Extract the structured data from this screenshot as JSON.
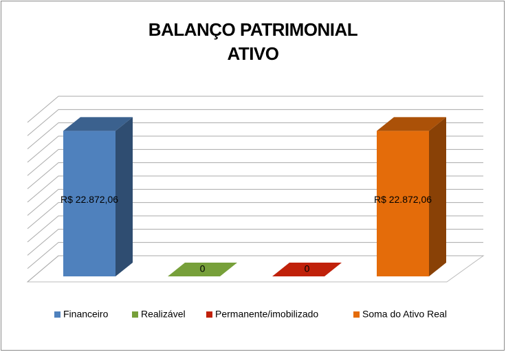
{
  "chart_data": {
    "type": "bar3d",
    "title": [
      "BALANÇO PATRIMONIAL",
      "ATIVO"
    ],
    "categories": [
      "Financeiro",
      "Realizável",
      "Permanente/imobilizado",
      "Soma do Ativo Real"
    ],
    "values": [
      22872.06,
      0,
      0,
      22872.06
    ],
    "value_labels": [
      "R$ 22.872,06",
      "0",
      "0",
      "R$ 22.872,06"
    ],
    "colors": [
      "#4f81bd",
      "#77a03a",
      "#c0210a",
      "#e46c0a"
    ],
    "ylim": [
      0,
      24000
    ],
    "yticks": [
      0,
      2000,
      4000,
      6000,
      8000,
      10000,
      12000,
      14000,
      16000,
      18000,
      20000,
      22000,
      24000
    ],
    "grid": true,
    "legend": "bottom"
  }
}
